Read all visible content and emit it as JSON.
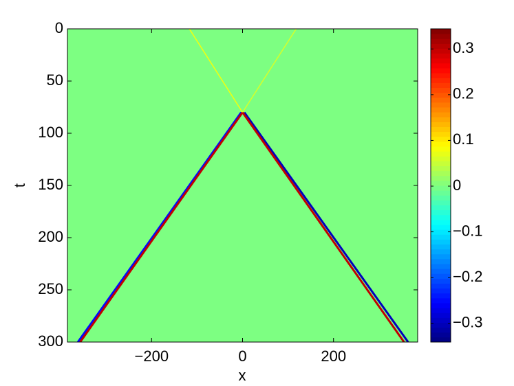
{
  "chart_data": {
    "type": "heatmap",
    "xlabel": "x",
    "ylabel": "t",
    "xlim": [
      -385,
      385
    ],
    "ylim": [
      0,
      300
    ],
    "xticks": [
      {
        "value": -200,
        "label": "−200"
      },
      0,
      200
    ],
    "yticks": [
      0,
      50,
      100,
      150,
      200,
      250,
      300
    ],
    "y_reversed": true,
    "colormap": "jet",
    "clim": [
      -0.341,
      0.344
    ],
    "cticks": [
      {
        "value": -0.3,
        "label": "−0.3"
      },
      {
        "value": -0.2,
        "label": "−0.2"
      },
      {
        "value": -0.1,
        "label": "−0.1"
      },
      0,
      0.1,
      0.2,
      0.3
    ],
    "background": 0,
    "fronts": [
      {
        "x": [
          -117,
          0
        ],
        "y": [
          0,
          80
        ],
        "value": 0.08
      },
      {
        "x": [
          118,
          0
        ],
        "y": [
          0,
          80
        ],
        "value": 0.06
      },
      {
        "x": [
          -3,
          -362
        ],
        "y": [
          80,
          300
        ],
        "value": -0.25
      },
      {
        "x": [
          0,
          -357
        ],
        "y": [
          80,
          300
        ],
        "value": 0.3
      },
      {
        "x": [
          4,
          364
        ],
        "y": [
          80,
          300
        ],
        "value": -0.3
      },
      {
        "x": [
          0,
          355
        ],
        "y": [
          80,
          300
        ],
        "value": 0.3
      }
    ]
  }
}
